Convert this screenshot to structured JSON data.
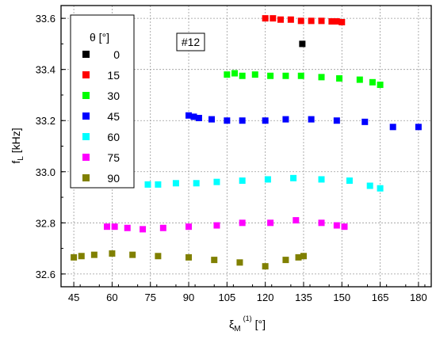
{
  "chart_data": {
    "type": "scatter",
    "xlabel": "ξM(1) [°]",
    "xlabel_parts": {
      "base": "ξ",
      "sub": "M",
      "sup": "(1)",
      "unit": "[°]"
    },
    "ylabel": "fL [kHz]",
    "ylabel_parts": {
      "base": "f",
      "sub": "L",
      "unit": "[kHz]"
    },
    "annotation": "#12",
    "xlim": [
      40,
      185
    ],
    "ylim": [
      32.55,
      33.65
    ],
    "xticks": [
      45,
      60,
      75,
      90,
      105,
      120,
      135,
      150,
      165,
      180
    ],
    "yticks": [
      32.6,
      32.8,
      33.0,
      33.2,
      33.4,
      33.6
    ],
    "ytick_labels": [
      "32.6",
      "32.8",
      "33.0",
      "33.2",
      "33.4",
      "33.6"
    ],
    "grid": true,
    "legend_title": "θ [°]",
    "legend_position": "upper-left",
    "series": [
      {
        "name": "0",
        "color": "#000000",
        "x": [
          134.5
        ],
        "y": [
          33.5
        ]
      },
      {
        "name": "15",
        "color": "#ff0000",
        "x": [
          120,
          123,
          126,
          130,
          134,
          138,
          142,
          146,
          148,
          150
        ],
        "y": [
          33.6,
          33.6,
          33.595,
          33.595,
          33.59,
          33.59,
          33.59,
          33.588,
          33.588,
          33.585
        ]
      },
      {
        "name": "30",
        "color": "#00ff00",
        "x": [
          105,
          108,
          111,
          116,
          122,
          128,
          134,
          142,
          149,
          157,
          162,
          165
        ],
        "y": [
          33.38,
          33.385,
          33.375,
          33.38,
          33.375,
          33.375,
          33.375,
          33.37,
          33.365,
          33.36,
          33.35,
          33.34
        ]
      },
      {
        "name": "45",
        "color": "#0000ff",
        "x": [
          90,
          92,
          94,
          99,
          105,
          111,
          120,
          128,
          138,
          148,
          159,
          170,
          180
        ],
        "y": [
          33.22,
          33.215,
          33.21,
          33.205,
          33.2,
          33.2,
          33.2,
          33.205,
          33.205,
          33.2,
          33.195,
          33.175,
          33.175
        ]
      },
      {
        "name": "60",
        "color": "#00ffff",
        "x": [
          74,
          78,
          85,
          93,
          101,
          111,
          121,
          131,
          142,
          153,
          161,
          165
        ],
        "y": [
          32.95,
          32.95,
          32.955,
          32.955,
          32.96,
          32.965,
          32.97,
          32.975,
          32.97,
          32.965,
          32.945,
          32.935
        ]
      },
      {
        "name": "75",
        "color": "#ff00ff",
        "x": [
          58,
          61,
          66,
          72,
          80,
          90,
          101,
          111,
          122,
          132,
          142,
          148,
          151
        ],
        "y": [
          32.785,
          32.785,
          32.78,
          32.775,
          32.78,
          32.785,
          32.79,
          32.8,
          32.8,
          32.81,
          32.8,
          32.79,
          32.785
        ]
      },
      {
        "name": "90",
        "color": "#808000",
        "x": [
          45,
          48,
          53,
          60,
          68,
          78,
          90,
          100,
          110,
          120,
          128,
          133,
          135
        ],
        "y": [
          32.665,
          32.67,
          32.675,
          32.68,
          32.675,
          32.67,
          32.665,
          32.655,
          32.645,
          32.63,
          32.655,
          32.665,
          32.67
        ]
      }
    ]
  }
}
